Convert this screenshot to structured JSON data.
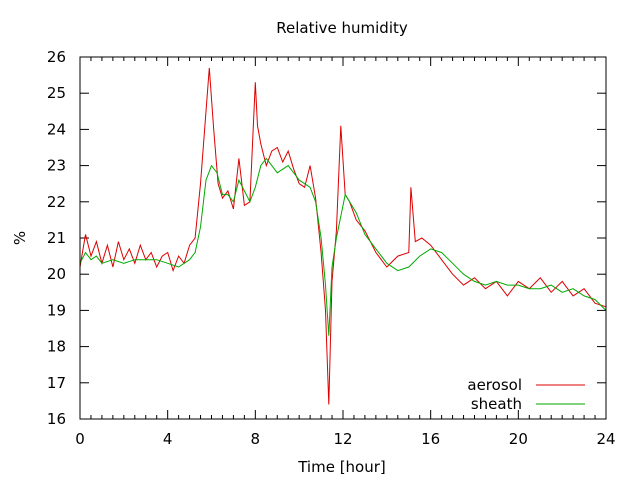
{
  "chart_data": {
    "type": "line",
    "title": "Relative humidity",
    "xlabel": "Time [hour]",
    "ylabel": "%",
    "xlim": [
      0,
      24
    ],
    "ylim": [
      16,
      26
    ],
    "xticks": [
      0,
      4,
      8,
      12,
      16,
      20,
      24
    ],
    "yticks": [
      16,
      17,
      18,
      19,
      20,
      21,
      22,
      23,
      24,
      25,
      26
    ],
    "grid": false,
    "legend_position": "bottom-right",
    "series": [
      {
        "name": "aerosol",
        "color": "#dd0000",
        "x": [
          0,
          0.25,
          0.5,
          0.75,
          1,
          1.25,
          1.5,
          1.75,
          2,
          2.25,
          2.5,
          2.75,
          3,
          3.25,
          3.5,
          3.75,
          4,
          4.25,
          4.5,
          4.75,
          5,
          5.25,
          5.5,
          5.75,
          5.9,
          6.1,
          6.3,
          6.5,
          6.75,
          7,
          7.25,
          7.5,
          7.75,
          8.0,
          8.1,
          8.25,
          8.5,
          8.75,
          9,
          9.25,
          9.5,
          9.75,
          10,
          10.25,
          10.5,
          10.75,
          11,
          11.2,
          11.35,
          11.5,
          11.7,
          11.9,
          12.1,
          12.3,
          12.6,
          13,
          13.5,
          14,
          14.5,
          15,
          15.1,
          15.3,
          15.6,
          16,
          16.5,
          17,
          17.5,
          18,
          18.5,
          19,
          19.5,
          20,
          20.5,
          21,
          21.5,
          22,
          22.5,
          23,
          23.5,
          24
        ],
        "values": [
          20.2,
          21.1,
          20.5,
          20.9,
          20.3,
          20.8,
          20.2,
          20.9,
          20.4,
          20.7,
          20.3,
          20.8,
          20.4,
          20.6,
          20.2,
          20.5,
          20.6,
          20.1,
          20.5,
          20.3,
          20.8,
          21.0,
          22.5,
          24.5,
          25.7,
          24.0,
          22.5,
          22.1,
          22.3,
          21.8,
          23.2,
          21.9,
          22.0,
          25.3,
          24.1,
          23.6,
          23.0,
          23.4,
          23.5,
          23.1,
          23.4,
          22.9,
          22.5,
          22.4,
          23.0,
          22.1,
          20.6,
          19.0,
          16.4,
          19.8,
          21.2,
          24.1,
          22.2,
          22.0,
          21.5,
          21.2,
          20.6,
          20.2,
          20.5,
          20.6,
          22.4,
          20.9,
          21.0,
          20.8,
          20.4,
          20.0,
          19.7,
          19.9,
          19.6,
          19.8,
          19.4,
          19.8,
          19.6,
          19.9,
          19.5,
          19.8,
          19.4,
          19.6,
          19.2,
          19.1
        ]
      },
      {
        "name": "sheath",
        "color": "#00aa00",
        "x": [
          0,
          0.25,
          0.5,
          0.75,
          1,
          1.5,
          2,
          2.5,
          3,
          3.5,
          4,
          4.5,
          5,
          5.25,
          5.5,
          5.75,
          6.0,
          6.25,
          6.5,
          6.75,
          7,
          7.25,
          7.5,
          7.75,
          8,
          8.25,
          8.5,
          8.75,
          9,
          9.25,
          9.5,
          9.75,
          10,
          10.25,
          10.5,
          10.75,
          11,
          11.2,
          11.35,
          11.5,
          11.7,
          11.9,
          12.1,
          12.3,
          12.6,
          13,
          13.5,
          14,
          14.5,
          15,
          15.5,
          16,
          16.5,
          17,
          17.5,
          18,
          18.5,
          19,
          19.5,
          20,
          20.5,
          21,
          21.5,
          22,
          22.5,
          23,
          23.5,
          24
        ],
        "values": [
          20.3,
          20.6,
          20.4,
          20.5,
          20.3,
          20.4,
          20.3,
          20.4,
          20.4,
          20.4,
          20.3,
          20.2,
          20.4,
          20.6,
          21.3,
          22.6,
          23.0,
          22.8,
          22.2,
          22.2,
          22.0,
          22.6,
          22.3,
          22.0,
          22.4,
          23.0,
          23.2,
          23.0,
          22.8,
          22.9,
          23.0,
          22.8,
          22.6,
          22.5,
          22.4,
          22.0,
          21.0,
          19.7,
          18.3,
          20.2,
          21.0,
          21.6,
          22.2,
          22.0,
          21.7,
          21.1,
          20.7,
          20.3,
          20.1,
          20.2,
          20.5,
          20.7,
          20.6,
          20.3,
          20.0,
          19.8,
          19.7,
          19.8,
          19.7,
          19.7,
          19.6,
          19.6,
          19.7,
          19.5,
          19.6,
          19.4,
          19.3,
          19.0
        ]
      }
    ]
  }
}
